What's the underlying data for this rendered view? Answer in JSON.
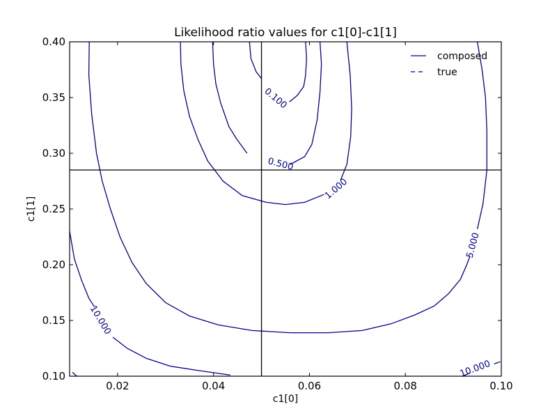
{
  "chart_data": {
    "type": "contour",
    "title": "Likelihood ratio values for c1[0]-c1[1]",
    "xlabel": "c1[0]",
    "ylabel": "c1[1]",
    "xlim": [
      0.01,
      0.1
    ],
    "ylim": [
      0.1,
      0.4
    ],
    "xticks": [
      "0.02",
      "0.04",
      "0.06",
      "0.08",
      "0.10"
    ],
    "xtick_values": [
      0.02,
      0.04,
      0.06,
      0.08,
      0.1
    ],
    "yticks": [
      "0.10",
      "0.15",
      "0.20",
      "0.25",
      "0.30",
      "0.35",
      "0.40"
    ],
    "ytick_values": [
      0.1,
      0.15,
      0.2,
      0.25,
      0.3,
      0.35,
      0.4
    ],
    "grid": false,
    "legend_position": "top-right",
    "legend": [
      {
        "label": "composed",
        "style": "solid"
      },
      {
        "label": "true",
        "style": "dashed"
      }
    ],
    "contour_color": "#00008b",
    "true_value": {
      "x": 0.05,
      "y": 0.285
    },
    "contours": [
      {
        "level": "0.100",
        "label_pos": [
          0.053,
          0.3495
        ],
        "segments": [
          [
            [
              0.0475,
              0.4
            ],
            [
              0.0478,
              0.385
            ],
            [
              0.0489,
              0.373
            ],
            [
              0.05,
              0.367
            ]
          ],
          [
            [
              0.0558,
              0.346
            ],
            [
              0.0575,
              0.352
            ],
            [
              0.0588,
              0.36
            ],
            [
              0.0592,
              0.37
            ],
            [
              0.0594,
              0.385
            ],
            [
              0.0592,
              0.4
            ]
          ]
        ]
      },
      {
        "level": "0.500",
        "label_pos": [
          0.054,
          0.2906
        ],
        "segments": [
          [
            [
              0.0398,
              0.4
            ],
            [
              0.04,
              0.38
            ],
            [
              0.0405,
              0.362
            ],
            [
              0.0415,
              0.345
            ],
            [
              0.0432,
              0.324
            ],
            [
              0.0448,
              0.313
            ],
            [
              0.047,
              0.3
            ]
          ],
          [
            [
              0.056,
              0.29
            ],
            [
              0.059,
              0.297
            ],
            [
              0.0605,
              0.308
            ],
            [
              0.0616,
              0.33
            ],
            [
              0.0622,
              0.355
            ],
            [
              0.0625,
              0.38
            ],
            [
              0.0622,
              0.4
            ]
          ]
        ]
      },
      {
        "level": "1.000",
        "label_pos": [
          0.0655,
          0.2684
        ],
        "segments": [
          [
            [
              0.0331,
              0.4
            ],
            [
              0.0332,
              0.38
            ],
            [
              0.0338,
              0.356
            ],
            [
              0.035,
              0.333
            ],
            [
              0.0368,
              0.312
            ],
            [
              0.0388,
              0.293
            ],
            [
              0.042,
              0.275
            ],
            [
              0.046,
              0.262
            ],
            [
              0.051,
              0.256
            ],
            [
              0.055,
              0.254
            ],
            [
              0.059,
              0.256
            ],
            [
              0.063,
              0.263
            ]
          ],
          [
            [
              0.0665,
              0.276
            ],
            [
              0.0678,
              0.29
            ],
            [
              0.0686,
              0.315
            ],
            [
              0.0688,
              0.34
            ],
            [
              0.0685,
              0.37
            ],
            [
              0.0678,
              0.4
            ]
          ]
        ]
      },
      {
        "level": "5.000",
        "label_pos": [
          0.094,
          0.2175
        ],
        "segments": [
          [
            [
              0.0141,
              0.4
            ],
            [
              0.014,
              0.37
            ],
            [
              0.0146,
              0.335
            ],
            [
              0.0156,
              0.3
            ],
            [
              0.0168,
              0.275
            ],
            [
              0.0185,
              0.25
            ],
            [
              0.0205,
              0.225
            ],
            [
              0.023,
              0.202
            ],
            [
              0.026,
              0.183
            ],
            [
              0.03,
              0.166
            ],
            [
              0.035,
              0.154
            ],
            [
              0.041,
              0.146
            ],
            [
              0.048,
              0.141
            ],
            [
              0.056,
              0.139
            ],
            [
              0.064,
              0.139
            ],
            [
              0.071,
              0.141
            ],
            [
              0.077,
              0.147
            ],
            [
              0.082,
              0.155
            ],
            [
              0.086,
              0.163
            ],
            [
              0.089,
              0.174
            ],
            [
              0.0915,
              0.187
            ],
            [
              0.0928,
              0.2
            ],
            [
              0.0935,
              0.208
            ]
          ],
          [
            [
              0.095,
              0.232
            ],
            [
              0.0962,
              0.255
            ],
            [
              0.097,
              0.285
            ],
            [
              0.097,
              0.32
            ],
            [
              0.0967,
              0.35
            ],
            [
              0.096,
              0.375
            ],
            [
              0.095,
              0.4
            ]
          ]
        ]
      },
      {
        "level": "10.000",
        "label_pos": [
          0.0165,
          0.1505
        ],
        "segments": [
          [
            [
              0.01,
              0.23
            ],
            [
              0.011,
              0.205
            ],
            [
              0.0125,
              0.186
            ],
            [
              0.014,
              0.17
            ],
            [
              0.0152,
              0.162
            ]
          ],
          [
            [
              0.019,
              0.135
            ],
            [
              0.022,
              0.125
            ],
            [
              0.026,
              0.116
            ],
            [
              0.031,
              0.109
            ],
            [
              0.037,
              0.105
            ],
            [
              0.0435,
              0.101
            ]
          ]
        ]
      },
      {
        "level": "10.000",
        "label_pos": [
          0.0945,
          0.107
        ],
        "segments": [
          [
            [
              0.092,
              0.1
            ],
            [
              0.0935,
              0.103
            ]
          ],
          [
            [
              0.0985,
              0.111
            ],
            [
              0.0998,
              0.113
            ]
          ]
        ]
      },
      {
        "level": "",
        "label_pos": null,
        "segments": [
          [
            [
              0.0106,
              0.1035
            ],
            [
              0.0112,
              0.101
            ],
            [
              0.0116,
              0.1
            ]
          ]
        ]
      }
    ]
  }
}
